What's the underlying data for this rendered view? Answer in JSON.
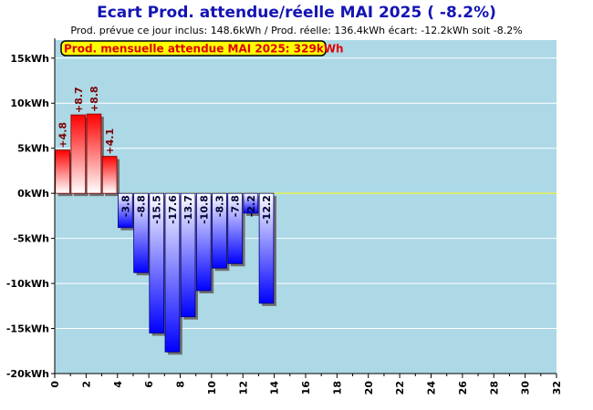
{
  "title": "Ecart Prod. attendue/réelle MAI 2025 ( -8.2%)",
  "subtitle": "Prod. prévue ce jour inclus: 148.6kWh / Prod. réelle: 136.4kWh écart: -12.2kWh soit -8.2%",
  "banner": "Prod. mensuelle attendue MAI 2025: 329kWh",
  "colors": {
    "plot_background": "#add8e6",
    "positive_bar": "#ff0000",
    "negative_bar": "#0000ff",
    "zero_line": "#ffff00",
    "banner_fill": "#ffff00",
    "title": "#1414b4"
  },
  "chart_data": {
    "type": "bar",
    "title": "Ecart Prod. attendue/réelle MAI 2025 ( -8.2%)",
    "xlabel": "",
    "ylabel": "",
    "xlim": [
      0,
      32
    ],
    "ylim": [
      -20,
      17
    ],
    "x_ticks": [
      "0",
      "2",
      "4",
      "6",
      "8",
      "10",
      "12",
      "14",
      "16",
      "18",
      "20",
      "22",
      "24",
      "26",
      "28",
      "30",
      "32"
    ],
    "y_ticks": [
      {
        "value": 15,
        "label": "15kWh"
      },
      {
        "value": 10,
        "label": "10kWh"
      },
      {
        "value": 5,
        "label": "5kWh"
      },
      {
        "value": 0,
        "label": "0kWh"
      },
      {
        "value": -5,
        "label": "-5kWh"
      },
      {
        "value": -10,
        "label": "-10kWh"
      },
      {
        "value": -15,
        "label": "-15kWh"
      },
      {
        "value": -20,
        "label": "-20kWh"
      }
    ],
    "grid": true,
    "categories": [
      1,
      2,
      3,
      4,
      5,
      6,
      7,
      8,
      9,
      10,
      11,
      12,
      13,
      14
    ],
    "values": [
      4.8,
      8.7,
      8.8,
      4.1,
      -3.8,
      -8.8,
      -15.5,
      -17.6,
      -13.7,
      -10.8,
      -8.3,
      -7.8,
      -2.2,
      -12.2
    ],
    "labels": [
      "+4.8",
      "+8.7",
      "+8.8",
      "+4.1",
      "-3.8",
      "-8.8",
      "-15.5",
      "-17.6",
      "-13.7",
      "-10.8",
      "-8.3",
      "-7.8",
      "-2.2",
      "-12.2"
    ]
  }
}
